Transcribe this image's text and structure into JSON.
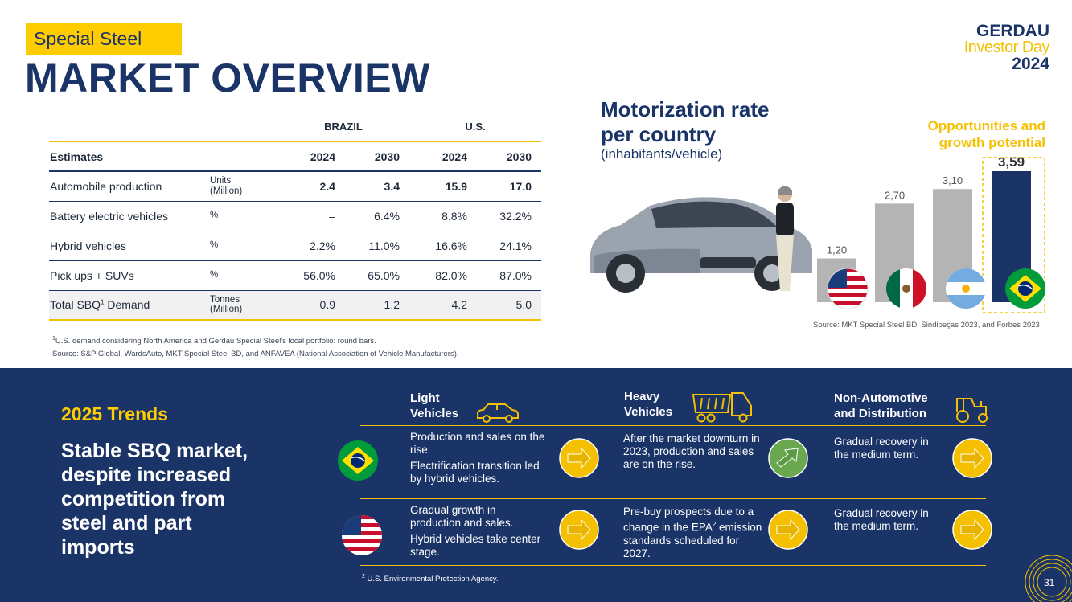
{
  "header": {
    "tag": "Special Steel",
    "title": "MARKET OVERVIEW",
    "logo": {
      "line1": "GERDAU",
      "line2": "Investor Day",
      "line3": "2024"
    }
  },
  "table": {
    "group_brazil": "BRAZIL",
    "group_us": "U.S.",
    "head": {
      "label": "Estimates",
      "c1": "2024",
      "c2": "2030",
      "c3": "2024",
      "c4": "2030"
    },
    "rows": [
      {
        "label": "Automobile production",
        "unit_line1": "Units",
        "unit_line2": "(Million)",
        "v": [
          "2.4",
          "3.4",
          "15.9",
          "17.0"
        ]
      },
      {
        "label": "Battery electric vehicles",
        "unit_line1": "%",
        "unit_line2": "",
        "v": [
          "–",
          "6.4%",
          "8.8%",
          "32.2%"
        ]
      },
      {
        "label": "Hybrid vehicles",
        "unit_line1": "%",
        "unit_line2": "",
        "v": [
          "2.2%",
          "11.0%",
          "16.6%",
          "24.1%"
        ]
      },
      {
        "label": "Pick ups + SUVs",
        "unit_line1": "%",
        "unit_line2": "",
        "v": [
          "56.0%",
          "65.0%",
          "82.0%",
          "87.0%"
        ]
      },
      {
        "label_pre": "Total SBQ",
        "label_sup": "1",
        "label_post": " Demand",
        "unit_line1": "Tonnes",
        "unit_line2": "(Million)",
        "v": [
          "0.9",
          "1.2",
          "4.2",
          "5.0"
        ]
      }
    ],
    "note1_sup": "1",
    "note1": "U.S. demand considering North America and Gerdau Special Steel's local portfolio: round bars.",
    "note2": "Source: S&P Global, WardsAuto, MKT Special Steel BD, and ANFAVEA (National Association of Vehicle Manufacturers)."
  },
  "motorization": {
    "title_line1": "Motorization rate",
    "title_line2": "per country",
    "subtitle": "(inhabitants/vehicle)",
    "opp_line1": "Opportunities and",
    "opp_line2": "growth potential",
    "source": "Source: MKT Special Steel BD, Sindipeças 2023, and Forbes 2023"
  },
  "chart_data": {
    "type": "bar",
    "categories": [
      "US",
      "Mexico",
      "Argentina",
      "Brazil"
    ],
    "values": [
      1.2,
      2.7,
      3.1,
      3.59
    ],
    "value_labels": [
      "1,20",
      "2,70",
      "3,10",
      "3,59"
    ],
    "colors": [
      "#b4b4b4",
      "#b4b4b4",
      "#b4b4b4",
      "#1b3468"
    ],
    "highlight": "Brazil",
    "ylim": [
      0,
      3.7
    ]
  },
  "trends": {
    "title": "2025 Trends",
    "body": "Stable SBQ market, despite increased competition from steel and part imports",
    "col1_line1": "Light",
    "col1_line2": "Vehicles",
    "col2_line1": "Heavy",
    "col2_line2": "Vehicles",
    "col3_line1": "Non-Automotive",
    "col3_line2": "and Distribution",
    "br_light_1": "Production and sales on the rise.",
    "br_light_2": "Electrification transition led by hybrid vehicles.",
    "br_heavy": "After the market downturn in 2023, production and sales are on the rise.",
    "br_nonauto": "Gradual recovery in the medium term.",
    "us_light_1": "Gradual growth in production and sales.",
    "us_light_2": "Hybrid vehicles take center stage.",
    "us_heavy_pre": "Pre-buy prospects due to a change in the EPA",
    "us_heavy_sup": "2",
    "us_heavy_post": " emission standards scheduled for 2027.",
    "us_nonauto": "Gradual recovery in the medium term.",
    "footnote_sup": "2",
    "footnote": "U.S. Environmental Protection Agency.",
    "page": "31"
  },
  "colors": {
    "navy": "#1b3468",
    "yellow": "#f5c000",
    "green": "#6aa84f"
  }
}
